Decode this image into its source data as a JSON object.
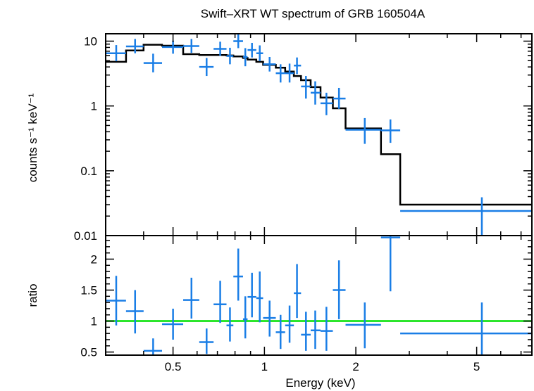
{
  "chart_data": [
    {
      "type": "scatter",
      "title": "Swift–XRT WT spectrum of GRB 160504A",
      "ylabel": "counts s⁻¹ keV⁻¹",
      "xlabel": "",
      "xscale": "log",
      "yscale": "log",
      "xlim": [
        0.3,
        7.6
      ],
      "ylim": [
        0.01,
        13
      ],
      "yticks": [
        {
          "value": 10,
          "label": "10"
        },
        {
          "value": 1,
          "label": "1"
        },
        {
          "value": 0.1,
          "label": "0.1"
        },
        {
          "value": 0.01,
          "label": "0.01"
        }
      ],
      "colors": {
        "data": "#1a7ee6",
        "model": "#000000"
      },
      "data_series": [
        {
          "x": 0.325,
          "xlo": 0.3,
          "xhi": 0.35,
          "y": 6.5,
          "ylo": 4.9,
          "yhi": 8.7
        },
        {
          "x": 0.375,
          "xlo": 0.35,
          "xhi": 0.4,
          "y": 8.3,
          "ylo": 6.5,
          "yhi": 10.8
        },
        {
          "x": 0.43,
          "xlo": 0.4,
          "xhi": 0.46,
          "y": 4.6,
          "ylo": 3.3,
          "yhi": 6.4
        },
        {
          "x": 0.5,
          "xlo": 0.46,
          "xhi": 0.54,
          "y": 8.1,
          "ylo": 6.4,
          "yhi": 10.2
        },
        {
          "x": 0.575,
          "xlo": 0.54,
          "xhi": 0.61,
          "y": 8.4,
          "ylo": 6.6,
          "yhi": 10.8
        },
        {
          "x": 0.645,
          "xlo": 0.61,
          "xhi": 0.68,
          "y": 4.0,
          "ylo": 2.9,
          "yhi": 5.5
        },
        {
          "x": 0.715,
          "xlo": 0.68,
          "xhi": 0.75,
          "y": 7.6,
          "ylo": 5.9,
          "yhi": 9.8
        },
        {
          "x": 0.77,
          "xlo": 0.75,
          "xhi": 0.79,
          "y": 5.9,
          "ylo": 4.4,
          "yhi": 7.9
        },
        {
          "x": 0.82,
          "xlo": 0.79,
          "xhi": 0.85,
          "y": 10.0,
          "ylo": 7.8,
          "yhi": 12.8
        },
        {
          "x": 0.865,
          "xlo": 0.85,
          "xhi": 0.88,
          "y": 5.7,
          "ylo": 4.1,
          "yhi": 7.8
        },
        {
          "x": 0.91,
          "xlo": 0.88,
          "xhi": 0.94,
          "y": 7.3,
          "ylo": 5.6,
          "yhi": 9.4
        },
        {
          "x": 0.965,
          "xlo": 0.94,
          "xhi": 0.99,
          "y": 6.5,
          "ylo": 4.9,
          "yhi": 8.6
        },
        {
          "x": 1.04,
          "xlo": 0.99,
          "xhi": 1.09,
          "y": 4.4,
          "ylo": 3.4,
          "yhi": 5.7
        },
        {
          "x": 1.13,
          "xlo": 1.09,
          "xhi": 1.17,
          "y": 3.2,
          "ylo": 2.3,
          "yhi": 4.4
        },
        {
          "x": 1.21,
          "xlo": 1.17,
          "xhi": 1.25,
          "y": 3.2,
          "ylo": 2.3,
          "yhi": 4.5
        },
        {
          "x": 1.28,
          "xlo": 1.25,
          "xhi": 1.32,
          "y": 4.2,
          "ylo": 3.1,
          "yhi": 5.6
        },
        {
          "x": 1.37,
          "xlo": 1.32,
          "xhi": 1.42,
          "y": 2.0,
          "ylo": 1.3,
          "yhi": 2.9
        },
        {
          "x": 1.47,
          "xlo": 1.42,
          "xhi": 1.53,
          "y": 1.6,
          "ylo": 1.05,
          "yhi": 2.4
        },
        {
          "x": 1.6,
          "xlo": 1.53,
          "xhi": 1.68,
          "y": 1.1,
          "ylo": 0.72,
          "yhi": 1.6
        },
        {
          "x": 1.76,
          "xlo": 1.68,
          "xhi": 1.85,
          "y": 1.3,
          "ylo": 0.9,
          "yhi": 1.9
        },
        {
          "x": 2.14,
          "xlo": 1.85,
          "xhi": 2.42,
          "y": 0.43,
          "ylo": 0.26,
          "yhi": 0.65
        },
        {
          "x": 2.6,
          "xlo": 2.42,
          "xhi": 2.8,
          "y": 0.42,
          "ylo": 0.27,
          "yhi": 0.62
        },
        {
          "x": 5.2,
          "xlo": 2.8,
          "xhi": 7.6,
          "y": 0.024,
          "ylo": 0.01,
          "yhi": 0.039
        }
      ],
      "model_steps": [
        {
          "x0": 0.3,
          "x1": 0.35,
          "y": 4.8
        },
        {
          "x0": 0.35,
          "x1": 0.4,
          "y": 7.2
        },
        {
          "x0": 0.4,
          "x1": 0.46,
          "y": 8.8
        },
        {
          "x0": 0.46,
          "x1": 0.54,
          "y": 8.5
        },
        {
          "x0": 0.54,
          "x1": 0.61,
          "y": 6.3
        },
        {
          "x0": 0.61,
          "x1": 0.75,
          "y": 6.1
        },
        {
          "x0": 0.75,
          "x1": 0.79,
          "y": 6.0
        },
        {
          "x0": 0.79,
          "x1": 0.85,
          "y": 5.8
        },
        {
          "x0": 0.85,
          "x1": 0.88,
          "y": 5.5
        },
        {
          "x0": 0.88,
          "x1": 0.94,
          "y": 5.2
        },
        {
          "x0": 0.94,
          "x1": 0.99,
          "y": 4.8
        },
        {
          "x0": 0.99,
          "x1": 1.09,
          "y": 4.3
        },
        {
          "x0": 1.09,
          "x1": 1.17,
          "y": 3.9
        },
        {
          "x0": 1.17,
          "x1": 1.25,
          "y": 3.4
        },
        {
          "x0": 1.25,
          "x1": 1.32,
          "y": 2.9
        },
        {
          "x0": 1.32,
          "x1": 1.42,
          "y": 2.5
        },
        {
          "x0": 1.42,
          "x1": 1.53,
          "y": 1.95
        },
        {
          "x0": 1.53,
          "x1": 1.68,
          "y": 1.35
        },
        {
          "x0": 1.68,
          "x1": 1.85,
          "y": 0.92
        },
        {
          "x0": 1.85,
          "x1": 2.42,
          "y": 0.45
        },
        {
          "x0": 2.42,
          "x1": 2.8,
          "y": 0.18
        },
        {
          "x0": 2.8,
          "x1": 7.6,
          "y": 0.03
        }
      ]
    },
    {
      "type": "scatter",
      "ylabel": "ratio",
      "xlabel": "Energy (keV)",
      "xscale": "log",
      "xlim": [
        0.3,
        7.6
      ],
      "ylim": [
        0.45,
        2.38
      ],
      "xticks": [
        {
          "value": 0.5,
          "label": "0.5"
        },
        {
          "value": 1,
          "label": "1"
        },
        {
          "value": 2,
          "label": "2"
        },
        {
          "value": 5,
          "label": "5"
        }
      ],
      "yticks": [
        {
          "value": 0.5,
          "label": "0.5"
        },
        {
          "value": 1,
          "label": "1"
        },
        {
          "value": 1.5,
          "label": "1.5"
        },
        {
          "value": 2,
          "label": "2"
        }
      ],
      "reference_line": {
        "y": 1,
        "color": "#00e000"
      },
      "colors": {
        "data": "#1a7ee6"
      },
      "data_series": [
        {
          "x": 0.325,
          "xlo": 0.3,
          "xhi": 0.35,
          "y": 1.33,
          "ylo": 0.93,
          "yhi": 1.73
        },
        {
          "x": 0.375,
          "xlo": 0.35,
          "xhi": 0.4,
          "y": 1.16,
          "ylo": 0.8,
          "yhi": 1.5
        },
        {
          "x": 0.43,
          "xlo": 0.4,
          "xhi": 0.46,
          "y": 0.52,
          "ylo": 0.45,
          "yhi": 0.72
        },
        {
          "x": 0.5,
          "xlo": 0.46,
          "xhi": 0.54,
          "y": 0.95,
          "ylo": 0.7,
          "yhi": 1.2
        },
        {
          "x": 0.575,
          "xlo": 0.54,
          "xhi": 0.61,
          "y": 1.34,
          "ylo": 1.04,
          "yhi": 1.7
        },
        {
          "x": 0.645,
          "xlo": 0.61,
          "xhi": 0.68,
          "y": 0.66,
          "ylo": 0.47,
          "yhi": 0.88
        },
        {
          "x": 0.715,
          "xlo": 0.68,
          "xhi": 0.75,
          "y": 1.27,
          "ylo": 0.97,
          "yhi": 1.65
        },
        {
          "x": 0.77,
          "xlo": 0.75,
          "xhi": 0.79,
          "y": 0.93,
          "ylo": 0.67,
          "yhi": 1.22
        },
        {
          "x": 0.82,
          "xlo": 0.79,
          "xhi": 0.85,
          "y": 1.72,
          "ylo": 1.33,
          "yhi": 2.17
        },
        {
          "x": 0.865,
          "xlo": 0.85,
          "xhi": 0.88,
          "y": 1.03,
          "ylo": 0.72,
          "yhi": 1.4
        },
        {
          "x": 0.91,
          "xlo": 0.88,
          "xhi": 0.94,
          "y": 1.39,
          "ylo": 1.06,
          "yhi": 1.78
        },
        {
          "x": 0.965,
          "xlo": 0.94,
          "xhi": 0.99,
          "y": 1.37,
          "ylo": 0.98,
          "yhi": 1.8
        },
        {
          "x": 1.04,
          "xlo": 0.99,
          "xhi": 1.09,
          "y": 1.05,
          "ylo": 0.75,
          "yhi": 1.33
        },
        {
          "x": 1.13,
          "xlo": 1.09,
          "xhi": 1.17,
          "y": 0.82,
          "ylo": 0.55,
          "yhi": 1.1
        },
        {
          "x": 1.21,
          "xlo": 1.17,
          "xhi": 1.25,
          "y": 0.93,
          "ylo": 0.65,
          "yhi": 1.25
        },
        {
          "x": 1.28,
          "xlo": 1.25,
          "xhi": 1.32,
          "y": 1.45,
          "ylo": 1.05,
          "yhi": 1.92
        },
        {
          "x": 1.37,
          "xlo": 1.32,
          "xhi": 1.42,
          "y": 0.78,
          "ylo": 0.52,
          "yhi": 1.15
        },
        {
          "x": 1.47,
          "xlo": 1.42,
          "xhi": 1.53,
          "y": 0.85,
          "ylo": 0.55,
          "yhi": 1.17
        },
        {
          "x": 1.6,
          "xlo": 1.53,
          "xhi": 1.68,
          "y": 0.84,
          "ylo": 0.52,
          "yhi": 1.23
        },
        {
          "x": 1.76,
          "xlo": 1.68,
          "xhi": 1.85,
          "y": 1.5,
          "ylo": 1.03,
          "yhi": 1.98
        },
        {
          "x": 2.14,
          "xlo": 1.85,
          "xhi": 2.42,
          "y": 0.94,
          "ylo": 0.56,
          "yhi": 1.3
        },
        {
          "x": 2.6,
          "xlo": 2.42,
          "xhi": 2.8,
          "y": 2.35,
          "ylo": 1.48,
          "yhi": 2.38
        },
        {
          "x": 5.2,
          "xlo": 2.8,
          "xhi": 7.6,
          "y": 0.8,
          "ylo": 0.45,
          "yhi": 1.3
        }
      ]
    }
  ]
}
